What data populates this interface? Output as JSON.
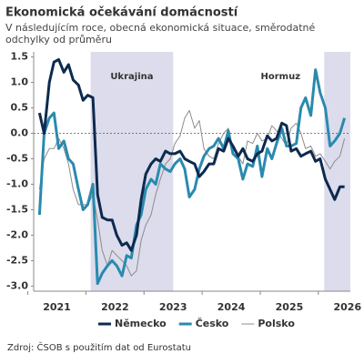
{
  "chart_data": {
    "type": "line",
    "title": "Ekonomická očekávání domácností",
    "subtitle": "V následujícím roce, obecná ekonomická situace, směrodatné odchylky od průměru",
    "source": "Zdroj: ČSOB s použitím dat od Eurostatu",
    "x": [
      2021.2,
      2021.28,
      2021.37,
      2021.45,
      2021.53,
      2021.62,
      2021.7,
      2021.78,
      2021.87,
      2021.95,
      2022.03,
      2022.12,
      2022.2,
      2022.28,
      2022.37,
      2022.45,
      2022.53,
      2022.62,
      2022.7,
      2022.78,
      2022.87,
      2022.95,
      2023.03,
      2023.12,
      2023.2,
      2023.28,
      2023.37,
      2023.45,
      2023.53,
      2023.62,
      2023.7,
      2023.78,
      2023.87,
      2023.95,
      2024.03,
      2024.12,
      2024.2,
      2024.28,
      2024.37,
      2024.45,
      2024.53,
      2024.62,
      2024.7,
      2024.78,
      2024.87,
      2024.95,
      2025.03,
      2025.12,
      2025.2,
      2025.28,
      2025.37,
      2025.45,
      2025.53,
      2025.62,
      2025.7,
      2025.78,
      2025.87,
      2025.95,
      2026.03,
      2026.12,
      2026.2,
      2026.28,
      2026.37,
      2026.45
    ],
    "series": [
      {
        "name": "Polsko",
        "color": "#8c8c8c",
        "width": 1,
        "values": [
          -1.1,
          -0.5,
          -0.3,
          -0.3,
          -0.1,
          -0.3,
          -0.6,
          -1.1,
          -1.4,
          -1.4,
          -1.4,
          -1.2,
          -1.7,
          -2.3,
          -2.6,
          -2.3,
          -2.4,
          -2.5,
          -2.6,
          -2.8,
          -2.7,
          -2.1,
          -1.8,
          -1.6,
          -1.2,
          -0.9,
          -0.6,
          -0.5,
          -0.2,
          -0.05,
          0.3,
          0.45,
          0.1,
          0.25,
          -0.3,
          -0.45,
          -0.5,
          -0.2,
          0.0,
          0.1,
          -0.3,
          -0.45,
          -0.6,
          -0.15,
          -0.2,
          0.0,
          -0.15,
          -0.1,
          0.15,
          0.05,
          -0.1,
          -0.25,
          0.1,
          0.2,
          0.0,
          -0.3,
          -0.25,
          -0.45,
          -0.4,
          -0.55,
          -0.7,
          -0.55,
          -0.45,
          -0.1
        ]
      },
      {
        "name": "Česko",
        "color": "#2a8aae",
        "width": 3,
        "values": [
          -1.6,
          0.0,
          0.3,
          0.4,
          -0.3,
          -0.15,
          -0.5,
          -0.6,
          -1.1,
          -1.5,
          -1.4,
          -1.0,
          -2.95,
          -2.75,
          -2.6,
          -2.5,
          -2.6,
          -2.8,
          -2.4,
          -2.45,
          -1.8,
          -1.6,
          -1.1,
          -0.9,
          -1.0,
          -0.6,
          -0.7,
          -0.75,
          -0.6,
          -0.5,
          -0.7,
          -1.25,
          -1.1,
          -0.7,
          -0.45,
          -0.3,
          -0.25,
          -0.1,
          -0.3,
          0.05,
          -0.4,
          -0.5,
          -0.9,
          -0.6,
          -0.65,
          -0.25,
          -0.85,
          -0.3,
          -0.5,
          -0.2,
          0.1,
          -0.25,
          -0.25,
          -0.2,
          0.5,
          0.7,
          0.35,
          1.25,
          0.8,
          0.5,
          -0.25,
          -0.15,
          0.0,
          0.3
        ]
      },
      {
        "name": "Německo",
        "color": "#0d2a4f",
        "width": 3,
        "values": [
          0.4,
          0.0,
          1.0,
          1.4,
          1.45,
          1.2,
          1.35,
          1.05,
          0.95,
          0.65,
          0.75,
          0.7,
          -1.2,
          -1.65,
          -1.7,
          -1.7,
          -2.0,
          -2.2,
          -2.15,
          -2.3,
          -2.0,
          -1.3,
          -0.8,
          -0.6,
          -0.5,
          -0.55,
          -0.35,
          -0.4,
          -0.4,
          -0.35,
          -0.5,
          -0.55,
          -0.6,
          -0.85,
          -0.75,
          -0.6,
          -0.6,
          -0.3,
          -0.35,
          -0.1,
          -0.25,
          -0.45,
          -0.3,
          -0.5,
          -0.55,
          -0.4,
          -0.35,
          -0.05,
          -0.15,
          -0.1,
          0.2,
          0.15,
          -0.35,
          -0.3,
          -0.45,
          -0.4,
          -0.35,
          -0.55,
          -0.5,
          -0.9,
          -1.1,
          -1.3,
          -1.05,
          -1.05
        ]
      }
    ],
    "legend_order": [
      2,
      1,
      0
    ],
    "shaded_regions": [
      {
        "label": "Ukrajina",
        "start": 2022.08,
        "end": 2023.5,
        "color": "#dcdcec"
      },
      {
        "label": "Hormuz",
        "start": 2026.1,
        "end": 2026.55,
        "color": "#dcdcec"
      }
    ],
    "xlim": [
      2021.1,
      2026.55
    ],
    "xticks": [
      {
        "value": 2021.5,
        "label": "2021"
      },
      {
        "value": 2022.5,
        "label": "2022"
      },
      {
        "value": 2023.5,
        "label": "2023"
      },
      {
        "value": 2024.5,
        "label": "2024"
      },
      {
        "value": 2025.5,
        "label": "2025"
      },
      {
        "value": 2026.5,
        "label": "2026"
      }
    ],
    "ylim": [
      -3.1,
      1.6
    ],
    "yticks": [
      {
        "value": 1.5,
        "label": "1.5"
      },
      {
        "value": 1.0,
        "label": "1.0"
      },
      {
        "value": 0.5,
        "label": "0.5"
      },
      {
        "value": 0.0,
        "label": "0.0"
      },
      {
        "value": -0.5,
        "label": "-0.5"
      },
      {
        "value": -1.0,
        "label": "-1.0"
      },
      {
        "value": -1.5,
        "label": "-1.5"
      },
      {
        "value": -2.0,
        "label": "-2.0"
      },
      {
        "value": -2.5,
        "label": "-2.5"
      },
      {
        "value": -3.0,
        "label": "-3.0"
      }
    ],
    "zero_line": true
  }
}
